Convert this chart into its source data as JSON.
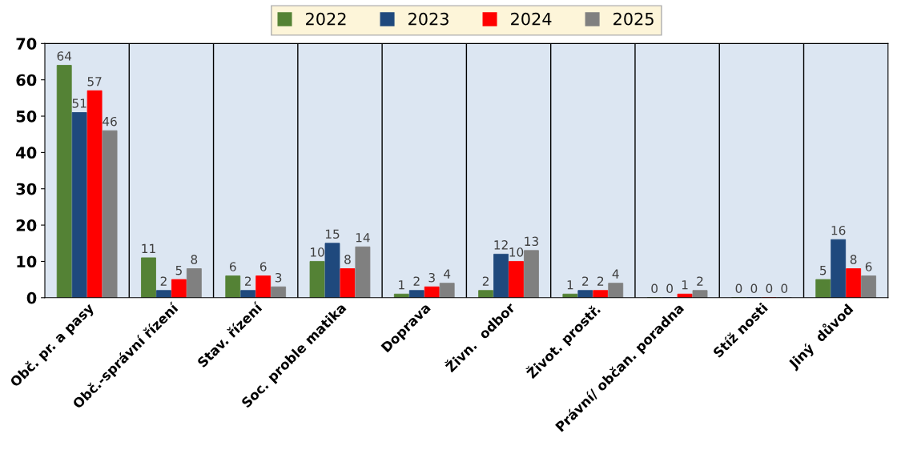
{
  "chart_data": {
    "type": "bar",
    "categories": [
      "Obč. pr. a pasy",
      "Obč.-správní řízení",
      "Stav. řízení",
      "Soc. proble matika",
      "Doprava",
      "Živn.  odbor",
      "Život. prostř.",
      "Právní/ občan. poradna",
      "Stíž nosti",
      "Jiný  důvod"
    ],
    "series": [
      {
        "name": "2022",
        "color": "#548235",
        "values": [
          64,
          11,
          6,
          10,
          1,
          2,
          1,
          0,
          0,
          5
        ]
      },
      {
        "name": "2023",
        "color": "#1f497d",
        "values": [
          51,
          2,
          2,
          15,
          2,
          12,
          2,
          0,
          0,
          16
        ]
      },
      {
        "name": "2024",
        "color": "#ff0000",
        "values": [
          57,
          5,
          6,
          8,
          3,
          10,
          2,
          1,
          0,
          8
        ]
      },
      {
        "name": "2025",
        "color": "#808080",
        "values": [
          46,
          8,
          3,
          14,
          4,
          13,
          4,
          2,
          0,
          6
        ]
      }
    ],
    "ylim": [
      0,
      70
    ],
    "yticks": [
      0,
      10,
      20,
      30,
      40,
      50,
      60,
      70
    ],
    "grid": "x",
    "legend": "top",
    "data_labels": true
  }
}
